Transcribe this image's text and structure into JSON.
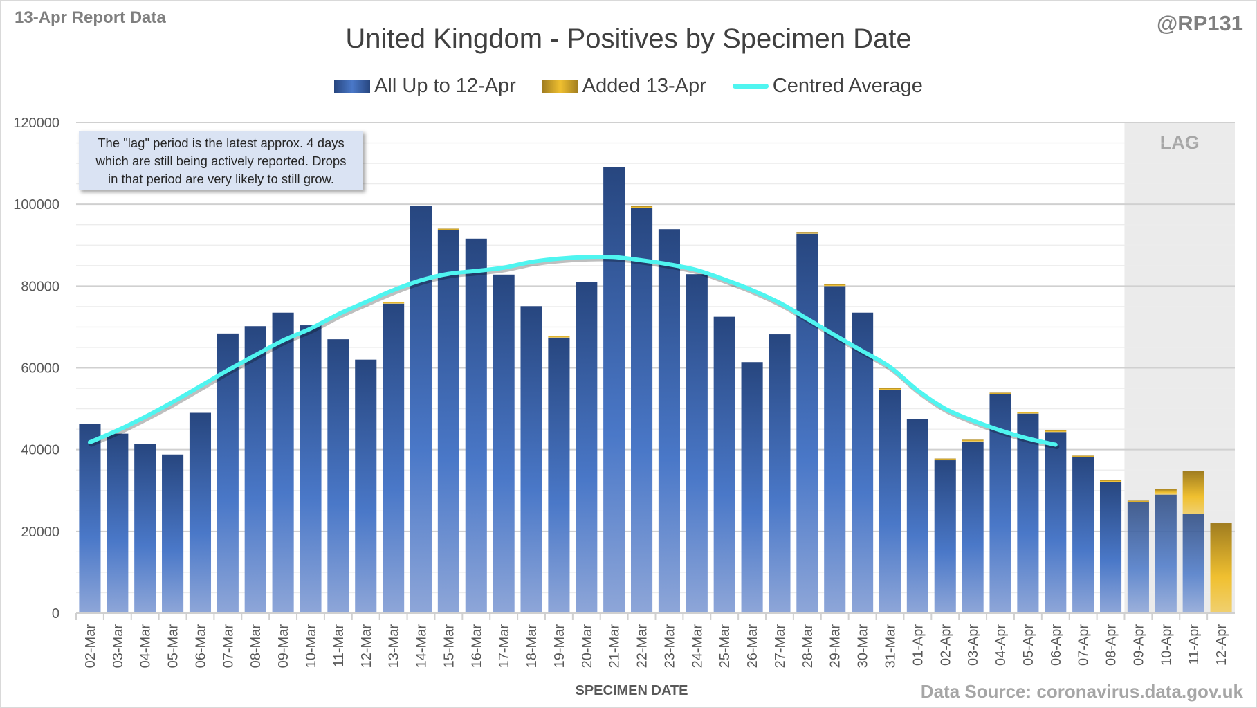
{
  "header": {
    "report_label": "13-Apr Report Data",
    "handle": "@RP131",
    "source": "Data Source: coronavirus.data.gov.uk"
  },
  "annotation": {
    "line1": "The \"lag\" period is the latest approx. 4 days",
    "line2": "which are still being actively reported.  Drops",
    "line3": "in that period are very likely to still grow."
  },
  "colors": {
    "previous": "#3a64ad",
    "added": "#e8b52a",
    "average": "#4ff5f0",
    "lag_shade": "#ebebeb"
  },
  "chart_data": {
    "type": "bar",
    "stacked": true,
    "title": "United Kingdom - Positives by Specimen Date",
    "xlabel": "SPECIMEN DATE",
    "ylabel": "",
    "ylim": [
      0,
      120000
    ],
    "yticks": [
      0,
      20000,
      40000,
      60000,
      80000,
      100000,
      120000
    ],
    "grid": true,
    "legend_position": "top",
    "lag_label": "LAG",
    "lag_categories": [
      "09-Apr",
      "10-Apr",
      "11-Apr",
      "12-Apr"
    ],
    "categories": [
      "02-Mar",
      "03-Mar",
      "04-Mar",
      "05-Mar",
      "06-Mar",
      "07-Mar",
      "08-Mar",
      "09-Mar",
      "10-Mar",
      "11-Mar",
      "12-Mar",
      "13-Mar",
      "14-Mar",
      "15-Mar",
      "16-Mar",
      "17-Mar",
      "18-Mar",
      "19-Mar",
      "20-Mar",
      "21-Mar",
      "22-Mar",
      "23-Mar",
      "24-Mar",
      "25-Mar",
      "26-Mar",
      "27-Mar",
      "28-Mar",
      "29-Mar",
      "30-Mar",
      "31-Mar",
      "01-Apr",
      "02-Apr",
      "03-Apr",
      "04-Apr",
      "05-Apr",
      "06-Apr",
      "07-Apr",
      "08-Apr",
      "09-Apr",
      "10-Apr",
      "11-Apr",
      "12-Apr"
    ],
    "series": [
      {
        "name": "All Up to 12-Apr",
        "values": [
          46300,
          43900,
          41400,
          38800,
          49000,
          68400,
          70200,
          73500,
          70400,
          67000,
          62000,
          75700,
          99600,
          93600,
          91600,
          82800,
          75100,
          67400,
          81000,
          109000,
          99100,
          93900,
          82900,
          72500,
          61400,
          68200,
          92800,
          80000,
          73500,
          54600,
          47400,
          37400,
          42000,
          53500,
          48800,
          44300,
          38100,
          32100,
          27100,
          29000,
          24300,
          0
        ]
      },
      {
        "name": "Added 13-Apr",
        "values": [
          0,
          0,
          0,
          0,
          0,
          0,
          0,
          0,
          0,
          0,
          0,
          300,
          0,
          200,
          0,
          0,
          0,
          300,
          0,
          0,
          100,
          0,
          0,
          0,
          0,
          0,
          100,
          200,
          0,
          200,
          0,
          100,
          200,
          100,
          100,
          300,
          400,
          300,
          400,
          1400,
          10400,
          22000
        ]
      },
      {
        "name": "Centred Average",
        "type": "line",
        "values": [
          41800,
          44700,
          48000,
          51600,
          55500,
          59400,
          63100,
          66700,
          69600,
          73100,
          76100,
          79000,
          81400,
          83000,
          83700,
          84500,
          85900,
          86700,
          87100,
          87100,
          86300,
          85300,
          83900,
          81600,
          79000,
          75900,
          72000,
          68000,
          64100,
          60200,
          54500,
          50000,
          47100,
          44700,
          42700,
          41200,
          null,
          null,
          null,
          null,
          null,
          null
        ]
      }
    ]
  }
}
